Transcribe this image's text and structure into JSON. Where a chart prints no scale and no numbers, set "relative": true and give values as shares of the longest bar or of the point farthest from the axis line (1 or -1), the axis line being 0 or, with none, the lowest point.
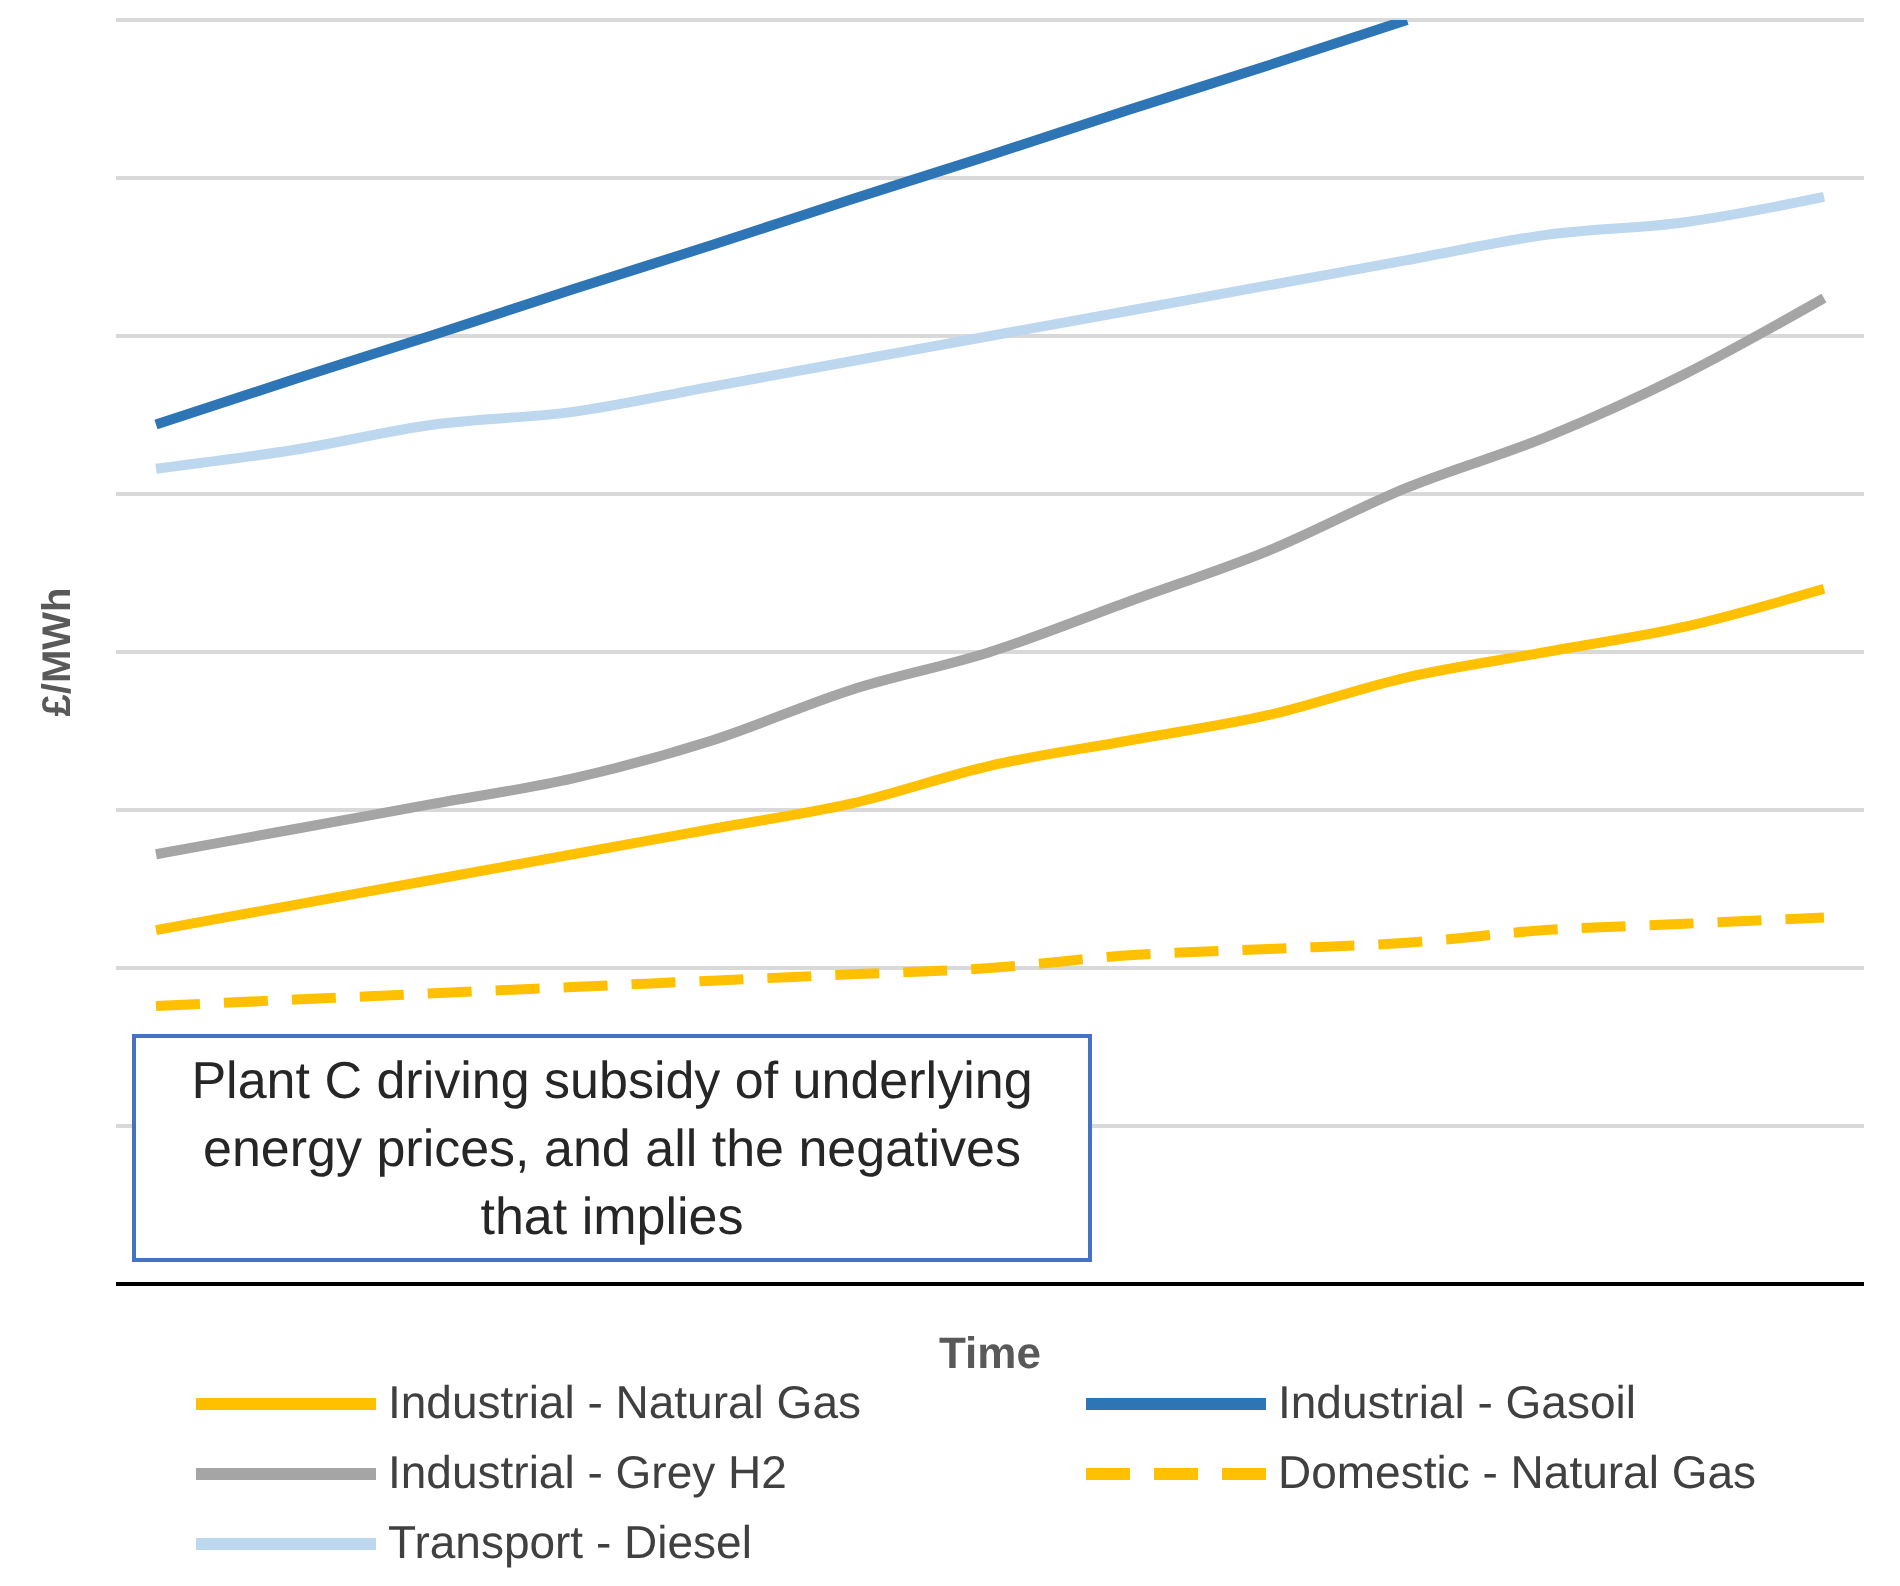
{
  "chart_data": {
    "type": "line",
    "relative": true,
    "xlabel": "Time",
    "ylabel": "£/MWh",
    "grid": "y",
    "legend": "bottom",
    "tick_labels": false,
    "marker": "none",
    "categories": [
      null,
      null,
      null,
      null,
      null,
      null,
      null,
      null,
      null,
      null,
      null,
      null,
      null
    ],
    "annotations": [
      "Plant C driving subsidy of underlying energy prices, and all the negatives that implies"
    ],
    "series": [
      {
        "name": "Industrial - Natural Gas",
        "color": "#ffc000",
        "line_style": "solid",
        "values": [
          0.28,
          0.3,
          0.32,
          0.34,
          0.36,
          0.38,
          0.41,
          0.43,
          0.45,
          0.48,
          0.5,
          0.52,
          0.55
        ]
      },
      {
        "name": "Industrial - Gasoil",
        "color": "#2e75b6",
        "line_style": "solid",
        "values": [
          0.68,
          0.716,
          0.751,
          0.787,
          0.822,
          0.858,
          0.893,
          0.929,
          0.964,
          1.0,
          null,
          null,
          null
        ]
      },
      {
        "name": "Industrial - Grey H2",
        "color": "#a5a5a5",
        "line_style": "solid",
        "values": [
          0.34,
          0.36,
          0.38,
          0.4,
          0.43,
          0.47,
          0.5,
          0.54,
          0.58,
          0.63,
          0.67,
          0.72,
          0.78
        ]
      },
      {
        "name": "Domestic - Natural Gas",
        "color": "#ffc000",
        "line_style": "dashed",
        "values": [
          0.22,
          0.225,
          0.23,
          0.235,
          0.24,
          0.245,
          0.25,
          0.26,
          0.265,
          0.27,
          0.28,
          0.285,
          0.29
        ]
      },
      {
        "name": "Transport - Diesel",
        "color": "#bdd7ee",
        "line_style": "solid",
        "values": [
          0.645,
          0.66,
          0.68,
          0.69,
          0.71,
          0.73,
          0.75,
          0.77,
          0.79,
          0.81,
          0.83,
          0.84,
          0.86
        ]
      }
    ]
  }
}
